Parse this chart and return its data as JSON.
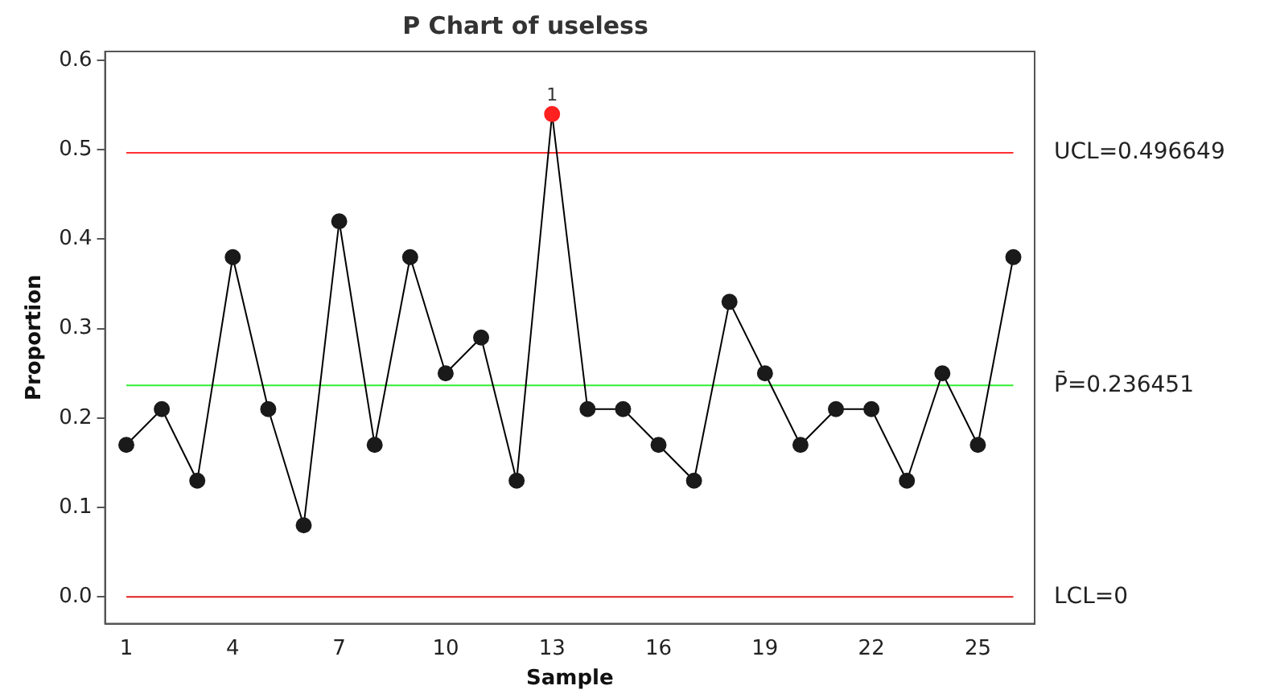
{
  "chart_data": {
    "type": "line",
    "title": "P Chart of useless",
    "xlabel": "Sample",
    "ylabel": "Proportion",
    "x": [
      1,
      2,
      3,
      4,
      5,
      6,
      7,
      8,
      9,
      10,
      11,
      12,
      13,
      14,
      15,
      16,
      17,
      18,
      19,
      20,
      21,
      22,
      23,
      24,
      25,
      26
    ],
    "series": [
      {
        "color": "#000000",
        "colors": [
          "#1a1a1a",
          "#1a1a1a",
          "#1a1a1a",
          "#1a1a1a",
          "#1a1a1a",
          "#1a1a1a",
          "#1a1a1a",
          "#1a1a1a",
          "#1a1a1a",
          "#1a1a1a",
          "#1a1a1a",
          "#1a1a1a",
          "#ff2020",
          "#1a1a1a",
          "#1a1a1a",
          "#1a1a1a",
          "#1a1a1a",
          "#1a1a1a",
          "#1a1a1a",
          "#1a1a1a",
          "#1a1a1a",
          "#1a1a1a",
          "#1a1a1a",
          "#1a1a1a",
          "#1a1a1a",
          "#1a1a1a"
        ],
        "values": [
          0.17,
          0.21,
          0.13,
          0.38,
          0.21,
          0.08,
          0.42,
          0.17,
          0.38,
          0.25,
          0.29,
          0.13,
          0.54,
          0.21,
          0.21,
          0.17,
          0.13,
          0.33,
          0.25,
          0.17,
          0.21,
          0.21,
          0.13,
          0.25,
          0.17,
          0.38
        ]
      }
    ],
    "xlim": [
      0.4,
      26.6
    ],
    "xticks": [
      1,
      4,
      7,
      10,
      13,
      16,
      19,
      22,
      25
    ],
    "ylim": [
      -0.03,
      0.61
    ],
    "yticks": [
      {
        "value": 0,
        "label": "0.0"
      },
      0.1,
      0.2,
      0.3,
      0.4,
      0.5,
      0.6
    ],
    "ref_lines": [
      {
        "axis": "y",
        "value": 0.496649,
        "label": "UCL=0.496649",
        "color": "#ff3030"
      },
      {
        "axis": "y",
        "value": 0.236451,
        "label": "P̄=0.236451",
        "color": "#33ee33"
      },
      {
        "axis": "y",
        "value": 0,
        "label": "LCL=0",
        "color": "#e02020"
      }
    ],
    "annotations": [
      {
        "text": "1",
        "x": 13,
        "y": 0.54
      }
    ],
    "grid": false,
    "legend": false,
    "marker": "circle",
    "line_style": "solid"
  }
}
